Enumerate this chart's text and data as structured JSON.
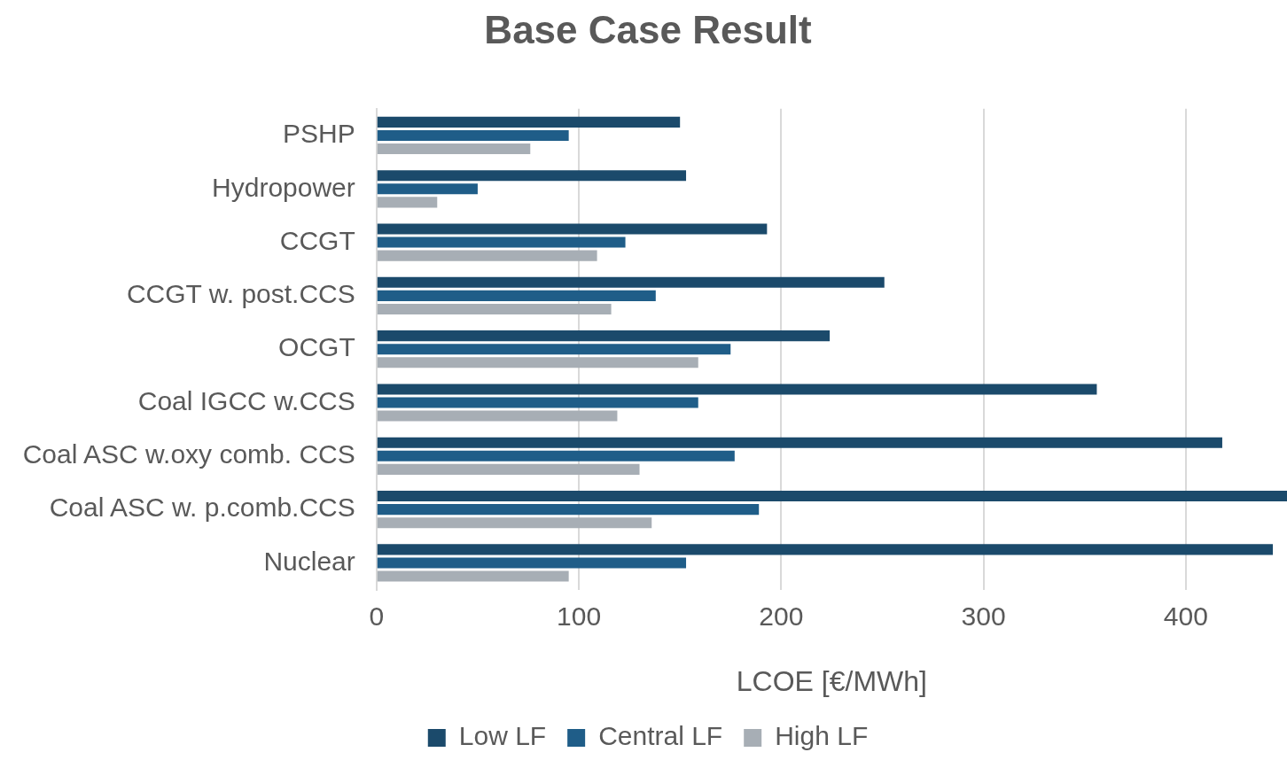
{
  "chart_data": {
    "type": "bar",
    "orientation": "horizontal",
    "title": "Base Case Result",
    "xlabel": "LCOE [€/MWh]",
    "categories": [
      "PSHP",
      "Hydropower",
      "CCGT",
      "CCGT w. post.CCS",
      "OCGT",
      "Coal IGCC w.CCS",
      "Coal ASC w.oxy comb. CCS",
      "Coal ASC w. p.comb.CCS",
      "Nuclear"
    ],
    "series": [
      {
        "name": "Low LF",
        "color": "#1b4a6b",
        "values": [
          150,
          153,
          193,
          251,
          224,
          356,
          418,
          450,
          443
        ]
      },
      {
        "name": "Central LF",
        "color": "#1f5d88",
        "values": [
          95,
          50,
          123,
          138,
          175,
          159,
          177,
          189,
          153
        ]
      },
      {
        "name": "High LF",
        "color": "#a7aeb5",
        "values": [
          76,
          30,
          109,
          116,
          159,
          119,
          130,
          136,
          95
        ]
      }
    ],
    "xlim": [
      0,
      450
    ],
    "xticks": [
      0,
      100,
      200,
      300,
      400
    ],
    "grid": "x",
    "legend": "bottom"
  }
}
